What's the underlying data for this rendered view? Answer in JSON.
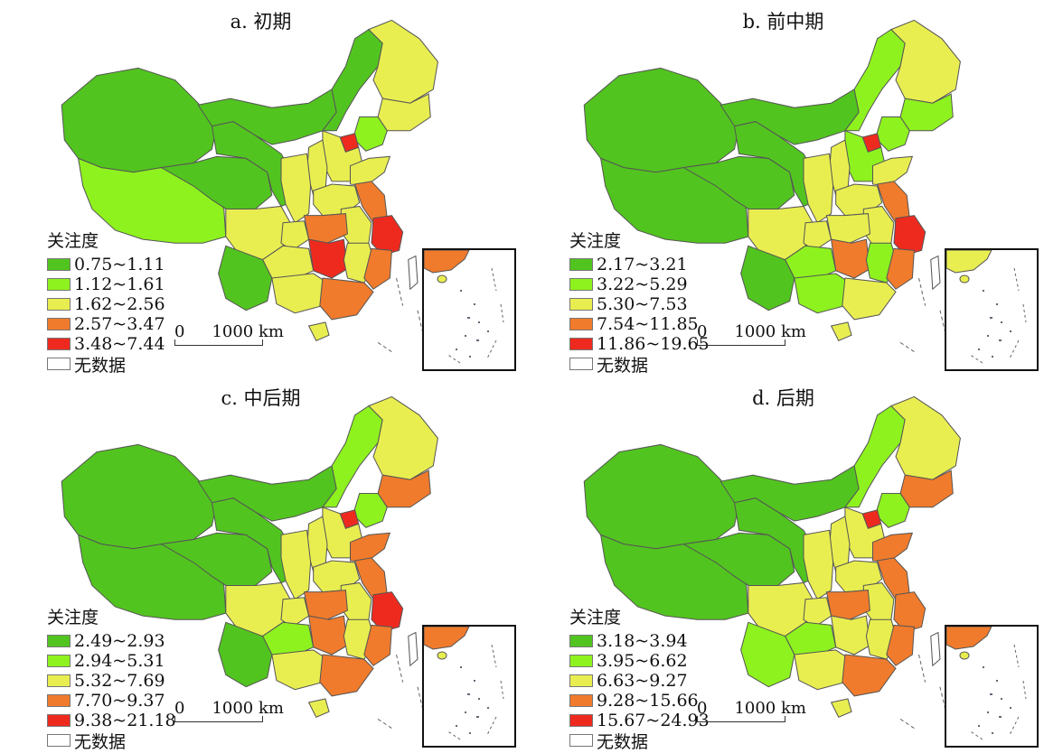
{
  "panels": [
    {
      "title": "a. 初期",
      "legend_title": "关注度",
      "scale": {
        "zero": "0",
        "label": "1000 km"
      },
      "classes": [
        {
          "label": "0.75~1.11",
          "color": "#52c41f"
        },
        {
          "label": "1.12~1.61",
          "color": "#8ef21e"
        },
        {
          "label": "1.62~2.56",
          "color": "#e9ee50"
        },
        {
          "label": "2.57~3.47",
          "color": "#f07b2c"
        },
        {
          "label": "3.48~7.44",
          "color": "#ee2a1f"
        },
        {
          "label": "无数据",
          "color": "#ffffff"
        }
      ],
      "regions": {
        "west": 0,
        "tibet": 1,
        "qinghai": 0,
        "gansu": 0,
        "nmg_west": 0,
        "nmg_east": 0,
        "heilongjiang": 2,
        "jilin": 2,
        "liaoning": 1,
        "beijing": 4,
        "hebei": 2,
        "shandong": 2,
        "shanxi": 2,
        "shaanxi": 2,
        "henan": 2,
        "jiangsu": 3,
        "anhui": 2,
        "shanghai_zhejiang": 4,
        "sichuan": 2,
        "chongqing": 2,
        "hubei": 3,
        "hunan": 4,
        "jiangxi": 2,
        "fujian": 3,
        "guizhou": 2,
        "yunnan": 0,
        "guangxi": 2,
        "guangdong": 3,
        "hainan": 2,
        "taiwan": 5
      }
    },
    {
      "title": "b. 前中期",
      "legend_title": "关注度",
      "scale": {
        "zero": "0",
        "label": "1000 km"
      },
      "classes": [
        {
          "label": "2.17~3.21",
          "color": "#52c41f"
        },
        {
          "label": "3.22~5.29",
          "color": "#8ef21e"
        },
        {
          "label": "5.30~7.53",
          "color": "#e9ee50"
        },
        {
          "label": "7.54~11.85",
          "color": "#f07b2c"
        },
        {
          "label": "11.86~19.65",
          "color": "#ee2a1f"
        },
        {
          "label": "无数据",
          "color": "#ffffff"
        }
      ],
      "regions": {
        "west": 0,
        "tibet": 0,
        "qinghai": 0,
        "gansu": 0,
        "nmg_west": 0,
        "nmg_east": 1,
        "heilongjiang": 2,
        "jilin": 1,
        "liaoning": 1,
        "beijing": 4,
        "hebei": 1,
        "shandong": 2,
        "shanxi": 2,
        "shaanxi": 2,
        "henan": 2,
        "jiangsu": 3,
        "anhui": 2,
        "shanghai_zhejiang": 4,
        "sichuan": 2,
        "chongqing": 2,
        "hubei": 2,
        "hunan": 3,
        "jiangxi": 1,
        "fujian": 3,
        "guizhou": 1,
        "yunnan": 0,
        "guangxi": 1,
        "guangdong": 2,
        "hainan": 2,
        "taiwan": 5
      }
    },
    {
      "title": "c. 中后期",
      "legend_title": "关注度",
      "scale": {
        "zero": "0",
        "label": "1000 km"
      },
      "classes": [
        {
          "label": "2.49~2.93",
          "color": "#52c41f"
        },
        {
          "label": "2.94~5.31",
          "color": "#8ef21e"
        },
        {
          "label": "5.32~7.69",
          "color": "#e9ee50"
        },
        {
          "label": "7.70~9.37",
          "color": "#f07b2c"
        },
        {
          "label": "9.38~21.18",
          "color": "#ee2a1f"
        },
        {
          "label": "无数据",
          "color": "#ffffff"
        }
      ],
      "regions": {
        "west": 0,
        "tibet": 0,
        "qinghai": 0,
        "gansu": 0,
        "nmg_west": 0,
        "nmg_east": 1,
        "heilongjiang": 2,
        "jilin": 3,
        "liaoning": 1,
        "beijing": 4,
        "hebei": 2,
        "shandong": 3,
        "shanxi": 2,
        "shaanxi": 2,
        "henan": 2,
        "jiangsu": 3,
        "anhui": 2,
        "shanghai_zhejiang": 4,
        "sichuan": 2,
        "chongqing": 2,
        "hubei": 3,
        "hunan": 3,
        "jiangxi": 2,
        "fujian": 3,
        "guizhou": 1,
        "yunnan": 0,
        "guangxi": 2,
        "guangdong": 3,
        "hainan": 2,
        "taiwan": 5
      }
    },
    {
      "title": "d. 后期",
      "legend_title": "关注度",
      "scale": {
        "zero": "0",
        "label": "1000 km"
      },
      "classes": [
        {
          "label": "3.18~3.94",
          "color": "#52c41f"
        },
        {
          "label": "3.95~6.62",
          "color": "#8ef21e"
        },
        {
          "label": "6.63~9.27",
          "color": "#e9ee50"
        },
        {
          "label": "9.28~15.66",
          "color": "#f07b2c"
        },
        {
          "label": "15.67~24.93",
          "color": "#ee2a1f"
        },
        {
          "label": "无数据",
          "color": "#ffffff"
        }
      ],
      "regions": {
        "west": 0,
        "tibet": 0,
        "qinghai": 0,
        "gansu": 0,
        "nmg_west": 0,
        "nmg_east": 1,
        "heilongjiang": 2,
        "jilin": 3,
        "liaoning": 1,
        "beijing": 4,
        "hebei": 2,
        "shandong": 3,
        "shanxi": 2,
        "shaanxi": 2,
        "henan": 2,
        "jiangsu": 3,
        "anhui": 2,
        "shanghai_zhejiang": 3,
        "sichuan": 2,
        "chongqing": 2,
        "hubei": 3,
        "hunan": 2,
        "jiangxi": 2,
        "fujian": 3,
        "guizhou": 1,
        "yunnan": 1,
        "guangxi": 2,
        "guangdong": 3,
        "hainan": 2,
        "taiwan": 5
      }
    }
  ]
}
